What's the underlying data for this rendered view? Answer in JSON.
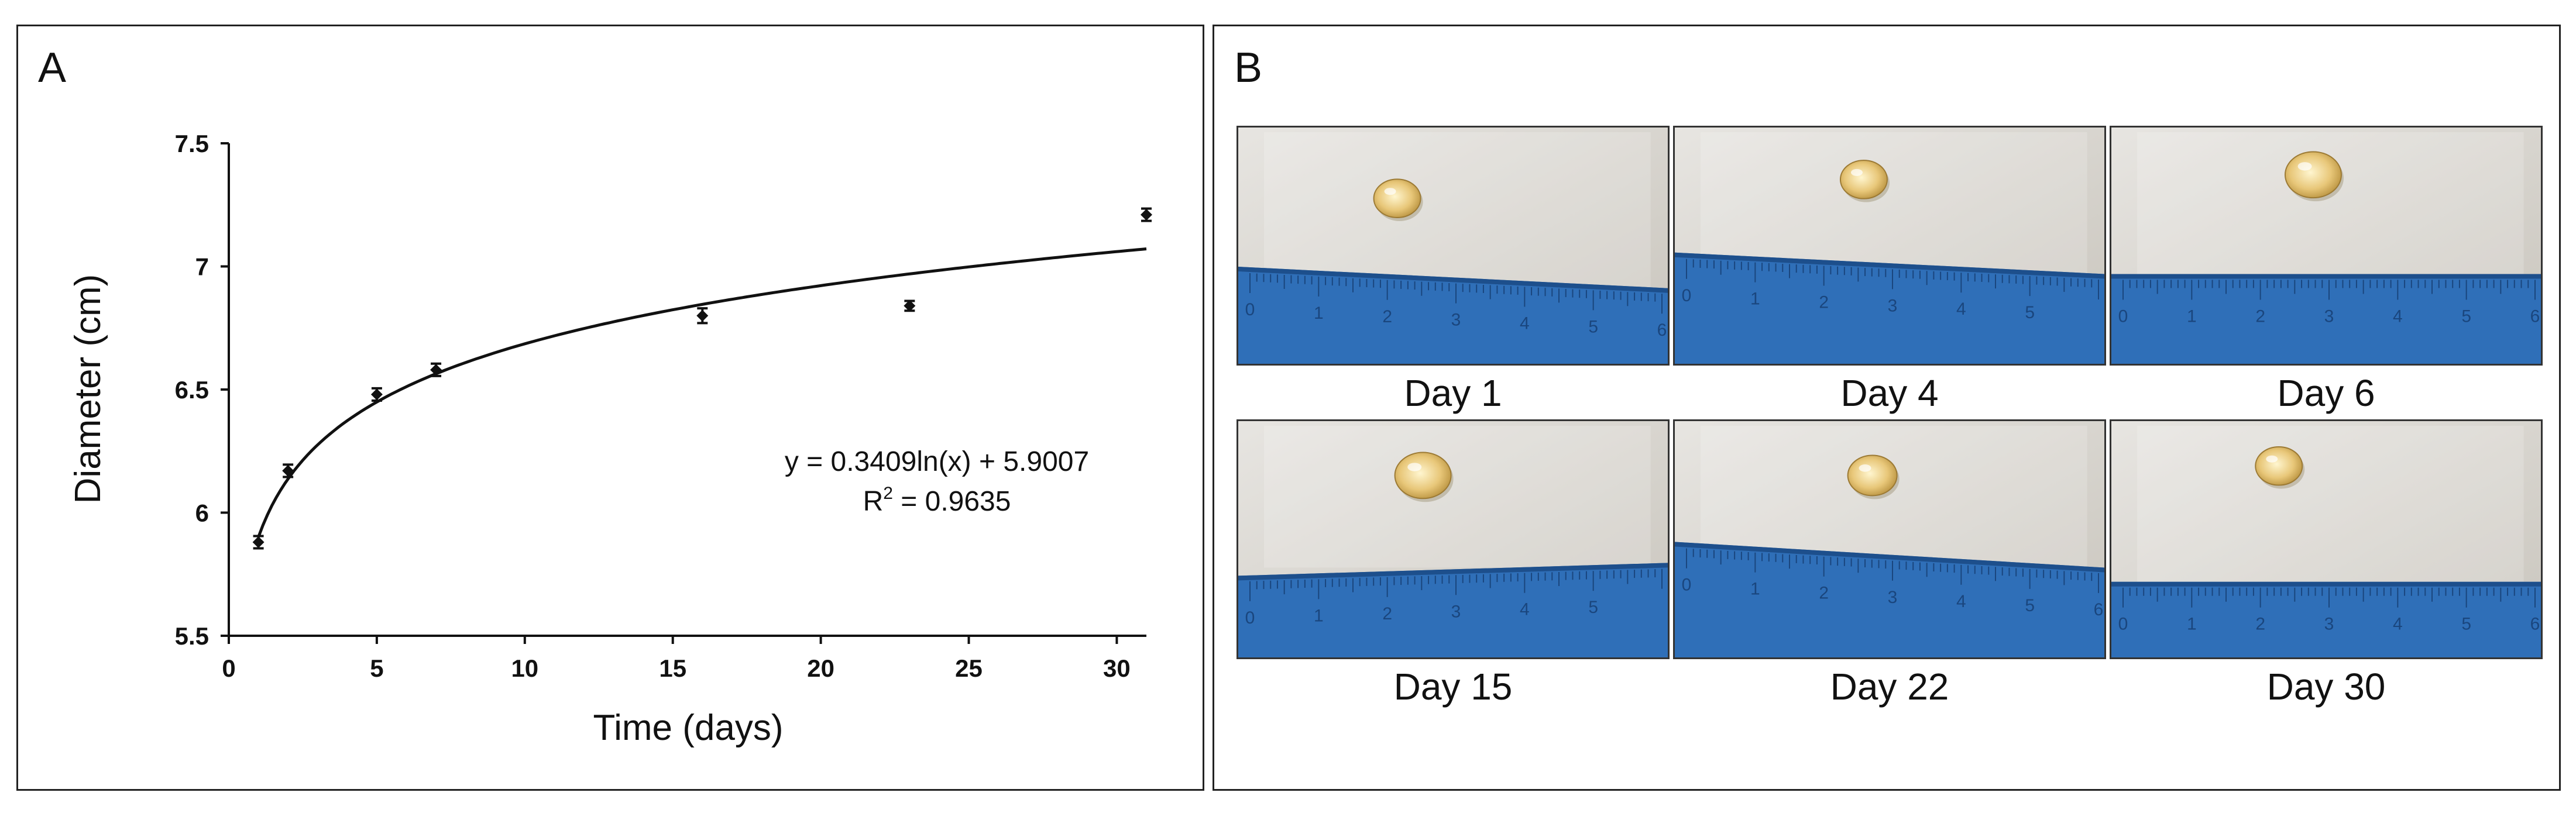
{
  "panel_a": {
    "letter": "A",
    "equation": "y = 0.3409ln(x) + 5.9007",
    "r2_prefix": "R",
    "r2_sup": "2",
    "r2_suffix": " = 0.9635"
  },
  "chart_data": {
    "type": "scatter",
    "xlabel": "Time (days)",
    "ylabel": "Diameter (cm)",
    "xlim": [
      0,
      31
    ],
    "ylim": [
      5.5,
      7.5
    ],
    "xticks": [
      0,
      5,
      10,
      15,
      20,
      25,
      30
    ],
    "yticks": [
      5.5,
      6,
      6.5,
      7,
      7.5
    ],
    "xtick_labels": [
      "0",
      "5",
      "10",
      "15",
      "20",
      "25",
      "30"
    ],
    "ytick_labels": [
      "5.5",
      "6",
      "6.5",
      "7",
      "7.5"
    ],
    "series": [
      {
        "x": [
          1,
          2,
          5,
          7,
          16,
          23,
          31
        ],
        "y": [
          5.88,
          6.17,
          6.48,
          6.58,
          6.8,
          6.84,
          7.21
        ],
        "error": [
          0.025,
          0.025,
          0.025,
          0.025,
          0.03,
          0.02,
          0.025
        ]
      }
    ],
    "trendline": {
      "type": "logarithmic",
      "a": 0.3409,
      "b": 5.9007,
      "x_range": [
        1,
        31
      ]
    },
    "grid": false
  },
  "panel_b": {
    "letter": "B",
    "photos": [
      {
        "caption": "Day 1"
      },
      {
        "caption": "Day 4"
      },
      {
        "caption": "Day 6"
      },
      {
        "caption": "Day 15"
      },
      {
        "caption": "Day 22"
      },
      {
        "caption": "Day 30"
      }
    ],
    "ruler_numbers": [
      "0",
      "1",
      "2",
      "3",
      "4",
      "5",
      "6"
    ],
    "colors": {
      "ruler": "#2f6fb8",
      "droplet": "#e8c779",
      "background": "#d9d6d0"
    }
  }
}
